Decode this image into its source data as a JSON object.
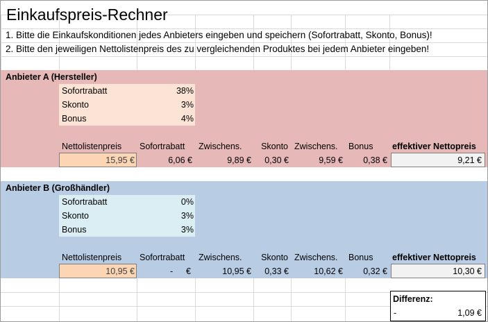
{
  "title": "Einkaufspreis-Rechner",
  "instructions": [
    "1. Bitte die Einkaufskonditionen jedes Anbieters eingeben und speichern (Sofortrabatt, Skonto, Bonus)!",
    "2. Bitte den jeweiligen Nettolistenpreis des zu vergleichenden Produktes bei jedem Anbieter eingeben!"
  ],
  "colors": {
    "vendor_a_band": "#e6b8b7",
    "vendor_a_conditions": "#fbe4d5",
    "vendor_b_band": "#b8cce4",
    "vendor_b_conditions": "#dbeef3",
    "price_input": "#fcd5b4",
    "result_box": "#f2f2f2"
  },
  "columns": {
    "nettolistenpreis": "Nettolistenpreis",
    "sofortrabatt": "Sofortrabatt",
    "zwischens1": "Zwischens.",
    "skonto": "Skonto",
    "zwischens2": "Zwischens.",
    "bonus": "Bonus",
    "effektiv": "effektiver Nettopreis"
  },
  "vendor_a": {
    "title": "Anbieter A (Hersteller)",
    "conditions": [
      {
        "label": "Sofortrabatt",
        "value": "38%"
      },
      {
        "label": "Skonto",
        "value": "3%"
      },
      {
        "label": "Bonus",
        "value": "4%"
      }
    ],
    "row": {
      "nettolistenpreis": "15,95 €",
      "sofortrabatt": "6,06 €",
      "zwischens1": "9,89 €",
      "skonto": "0,30 €",
      "zwischens2": "9,59 €",
      "bonus": "0,38 €",
      "effektiv": "9,21 €"
    }
  },
  "vendor_b": {
    "title": "Anbieter B (Großhändler)",
    "conditions": [
      {
        "label": "Sofortrabatt",
        "value": "0%"
      },
      {
        "label": "Skonto",
        "value": "3%"
      },
      {
        "label": "Bonus",
        "value": "3%"
      }
    ],
    "row": {
      "nettolistenpreis": "10,95 €",
      "sofortrabatt_dash": "-",
      "sofortrabatt_euro": "€",
      "zwischens1": "10,95 €",
      "skonto": "0,33 €",
      "zwischens2": "10,62 €",
      "bonus": "0,32 €",
      "effektiv": "10,30 €"
    }
  },
  "difference": {
    "label": "Differenz:",
    "sign": "-",
    "value": "1,09 €"
  }
}
